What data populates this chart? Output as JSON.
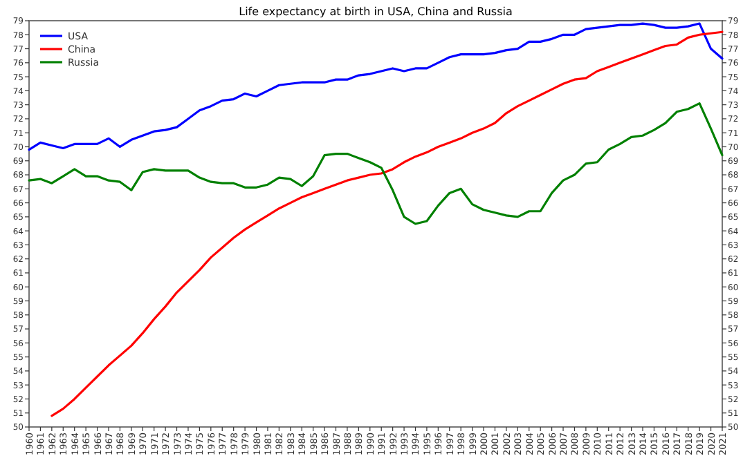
{
  "chart_data": {
    "type": "line",
    "title": "Life expectancy at birth in USA, China and Russia",
    "x": [
      1960,
      1961,
      1962,
      1963,
      1964,
      1965,
      1966,
      1967,
      1968,
      1969,
      1970,
      1971,
      1972,
      1973,
      1974,
      1975,
      1976,
      1977,
      1978,
      1979,
      1980,
      1981,
      1982,
      1983,
      1984,
      1985,
      1986,
      1987,
      1988,
      1989,
      1990,
      1991,
      1992,
      1993,
      1994,
      1995,
      1996,
      1997,
      1998,
      1999,
      2000,
      2001,
      2002,
      2003,
      2004,
      2005,
      2006,
      2007,
      2008,
      2009,
      2010,
      2011,
      2012,
      2013,
      2014,
      2015,
      2016,
      2017,
      2018,
      2019,
      2020,
      2021
    ],
    "series": [
      {
        "name": "USA",
        "color": "#0000ff",
        "values": [
          69.8,
          70.3,
          70.1,
          69.9,
          70.2,
          70.2,
          70.2,
          70.6,
          70.0,
          70.5,
          70.8,
          71.1,
          71.2,
          71.4,
          72.0,
          72.6,
          72.9,
          73.3,
          73.4,
          73.8,
          73.6,
          74.0,
          74.4,
          74.5,
          74.6,
          74.6,
          74.6,
          74.8,
          74.8,
          75.1,
          75.2,
          75.4,
          75.6,
          75.4,
          75.6,
          75.6,
          76.0,
          76.4,
          76.6,
          76.6,
          76.6,
          76.7,
          76.9,
          77.0,
          77.5,
          77.5,
          77.7,
          78.0,
          78.0,
          78.4,
          78.5,
          78.6,
          78.7,
          78.7,
          78.8,
          78.7,
          78.5,
          78.5,
          78.6,
          78.8,
          77.0,
          76.3
        ]
      },
      {
        "name": "China",
        "color": "#ff0000",
        "values": [
          null,
          null,
          50.8,
          51.3,
          52.0,
          52.8,
          53.6,
          54.4,
          55.1,
          55.8,
          56.7,
          57.7,
          58.6,
          59.6,
          60.4,
          61.2,
          62.1,
          62.8,
          63.5,
          64.1,
          64.6,
          65.1,
          65.6,
          66.0,
          66.4,
          66.7,
          67.0,
          67.3,
          67.6,
          67.8,
          68.0,
          68.1,
          68.4,
          68.9,
          69.3,
          69.6,
          70.0,
          70.3,
          70.6,
          71.0,
          71.3,
          71.7,
          72.4,
          72.9,
          73.3,
          73.7,
          74.1,
          74.5,
          74.8,
          74.9,
          75.4,
          75.7,
          76.0,
          76.3,
          76.6,
          76.9,
          77.2,
          77.3,
          77.8,
          78.0,
          78.1,
          78.2
        ]
      },
      {
        "name": "Russia",
        "color": "#008000",
        "values": [
          67.6,
          67.7,
          67.4,
          67.9,
          68.4,
          67.9,
          67.9,
          67.6,
          67.5,
          66.9,
          68.2,
          68.4,
          68.3,
          68.3,
          68.3,
          67.8,
          67.5,
          67.4,
          67.4,
          67.1,
          67.1,
          67.3,
          67.8,
          67.7,
          67.2,
          67.9,
          69.4,
          69.5,
          69.5,
          69.2,
          68.9,
          68.5,
          66.9,
          65.0,
          64.5,
          64.7,
          65.8,
          66.7,
          67.0,
          65.9,
          65.5,
          65.3,
          65.1,
          65.0,
          65.4,
          65.4,
          66.7,
          67.6,
          68.0,
          68.8,
          68.9,
          69.8,
          70.2,
          70.7,
          70.8,
          71.2,
          71.7,
          72.5,
          72.7,
          73.1,
          71.3,
          69.4
        ]
      }
    ],
    "xlim": [
      1960,
      2021
    ],
    "xticks": [
      1960,
      1961,
      1962,
      1963,
      1964,
      1965,
      1966,
      1967,
      1968,
      1969,
      1970,
      1971,
      1972,
      1973,
      1974,
      1975,
      1976,
      1977,
      1978,
      1979,
      1980,
      1981,
      1982,
      1983,
      1984,
      1985,
      1986,
      1987,
      1988,
      1989,
      1990,
      1991,
      1992,
      1993,
      1994,
      1995,
      1996,
      1997,
      1998,
      1999,
      2000,
      2001,
      2002,
      2003,
      2004,
      2005,
      2006,
      2007,
      2008,
      2009,
      2010,
      2011,
      2012,
      2013,
      2014,
      2015,
      2016,
      2017,
      2018,
      2019,
      2020,
      2021
    ],
    "ylim": [
      50,
      79
    ],
    "yticks": [
      50,
      51,
      52,
      53,
      54,
      55,
      56,
      57,
      58,
      59,
      60,
      61,
      62,
      63,
      64,
      65,
      66,
      67,
      68,
      69,
      70,
      71,
      72,
      73,
      74,
      75,
      76,
      77,
      78,
      79
    ],
    "y2lim": [
      50,
      79
    ],
    "y2ticks": [
      50,
      51,
      52,
      53,
      54,
      55,
      56,
      57,
      58,
      59,
      60,
      61,
      62,
      63,
      64,
      65,
      66,
      67,
      68,
      69,
      70,
      71,
      72,
      73,
      74,
      75,
      76,
      77,
      78,
      79
    ],
    "legend": "top left",
    "marker": "none",
    "line_style": "solid"
  }
}
